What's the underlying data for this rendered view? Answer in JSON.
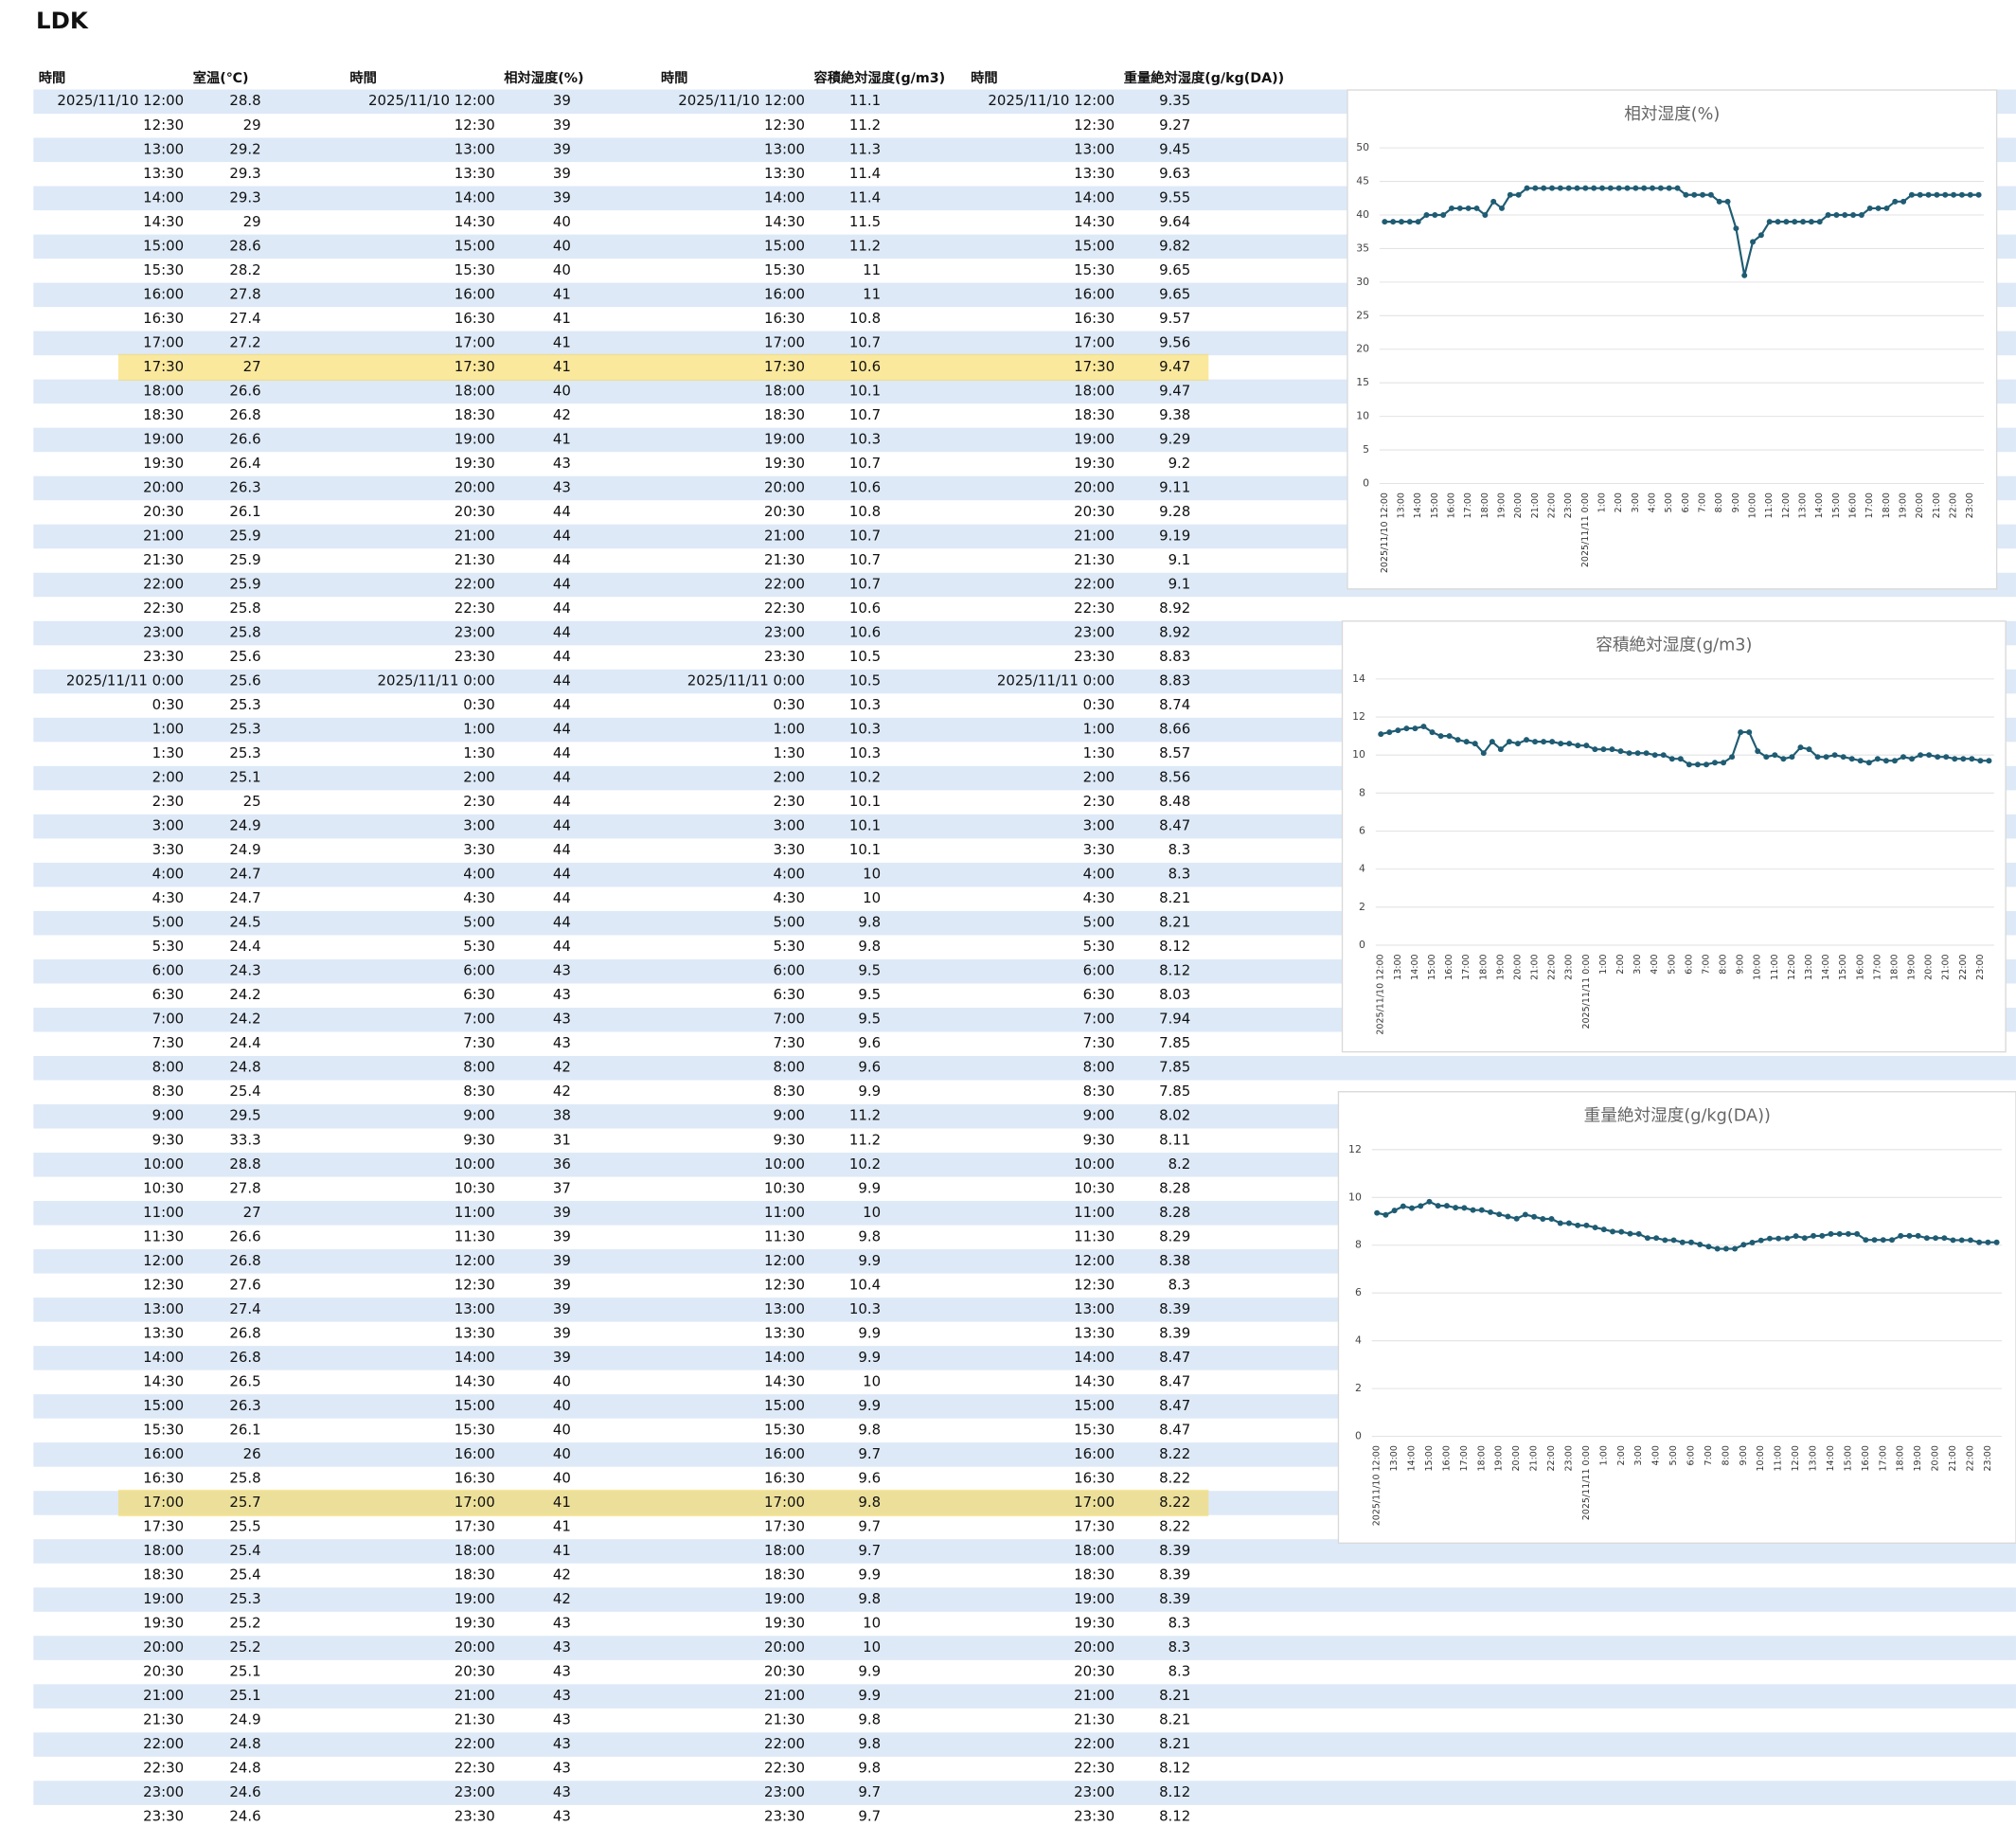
{
  "title": "LDK",
  "table": {
    "headers": [
      "時間",
      "室温(℃)",
      "時間",
      "相対湿度(%)",
      "時間",
      "容積絶対湿度(g/m3)",
      "時間",
      "重量絶対湿度(g/kg(DA))"
    ],
    "rows": [
      [
        "2025/11/10 12:00",
        28.8,
        39,
        11.1,
        9.35
      ],
      [
        "12:30",
        29,
        39,
        11.2,
        9.27
      ],
      [
        "13:00",
        29.2,
        39,
        11.3,
        9.45
      ],
      [
        "13:30",
        29.3,
        39,
        11.4,
        9.63
      ],
      [
        "14:00",
        29.3,
        39,
        11.4,
        9.55
      ],
      [
        "14:30",
        29,
        40,
        11.5,
        9.64
      ],
      [
        "15:00",
        28.6,
        40,
        11.2,
        9.82
      ],
      [
        "15:30",
        28.2,
        40,
        11,
        9.65
      ],
      [
        "16:00",
        27.8,
        41,
        11,
        9.65
      ],
      [
        "16:30",
        27.4,
        41,
        10.8,
        9.57
      ],
      [
        "17:00",
        27.2,
        41,
        10.7,
        9.56
      ],
      [
        "17:30",
        27,
        41,
        10.6,
        9.47
      ],
      [
        "18:00",
        26.6,
        40,
        10.1,
        9.47
      ],
      [
        "18:30",
        26.8,
        42,
        10.7,
        9.38
      ],
      [
        "19:00",
        26.6,
        41,
        10.3,
        9.29
      ],
      [
        "19:30",
        26.4,
        43,
        10.7,
        9.2
      ],
      [
        "20:00",
        26.3,
        43,
        10.6,
        9.11
      ],
      [
        "20:30",
        26.1,
        44,
        10.8,
        9.28
      ],
      [
        "21:00",
        25.9,
        44,
        10.7,
        9.19
      ],
      [
        "21:30",
        25.9,
        44,
        10.7,
        9.1
      ],
      [
        "22:00",
        25.9,
        44,
        10.7,
        9.1
      ],
      [
        "22:30",
        25.8,
        44,
        10.6,
        8.92
      ],
      [
        "23:00",
        25.8,
        44,
        10.6,
        8.92
      ],
      [
        "23:30",
        25.6,
        44,
        10.5,
        8.83
      ],
      [
        "2025/11/11 0:00",
        25.6,
        44,
        10.5,
        8.83
      ],
      [
        "0:30",
        25.3,
        44,
        10.3,
        8.74
      ],
      [
        "1:00",
        25.3,
        44,
        10.3,
        8.66
      ],
      [
        "1:30",
        25.3,
        44,
        10.3,
        8.57
      ],
      [
        "2:00",
        25.1,
        44,
        10.2,
        8.56
      ],
      [
        "2:30",
        25,
        44,
        10.1,
        8.48
      ],
      [
        "3:00",
        24.9,
        44,
        10.1,
        8.47
      ],
      [
        "3:30",
        24.9,
        44,
        10.1,
        8.3
      ],
      [
        "4:00",
        24.7,
        44,
        10,
        8.3
      ],
      [
        "4:30",
        24.7,
        44,
        10,
        8.21
      ],
      [
        "5:00",
        24.5,
        44,
        9.8,
        8.21
      ],
      [
        "5:30",
        24.4,
        44,
        9.8,
        8.12
      ],
      [
        "6:00",
        24.3,
        43,
        9.5,
        8.12
      ],
      [
        "6:30",
        24.2,
        43,
        9.5,
        8.03
      ],
      [
        "7:00",
        24.2,
        43,
        9.5,
        7.94
      ],
      [
        "7:30",
        24.4,
        43,
        9.6,
        7.85
      ],
      [
        "8:00",
        24.8,
        42,
        9.6,
        7.85
      ],
      [
        "8:30",
        25.4,
        42,
        9.9,
        7.85
      ],
      [
        "9:00",
        29.5,
        38,
        11.2,
        8.02
      ],
      [
        "9:30",
        33.3,
        31,
        11.2,
        8.11
      ],
      [
        "10:00",
        28.8,
        36,
        10.2,
        8.2
      ],
      [
        "10:30",
        27.8,
        37,
        9.9,
        8.28
      ],
      [
        "11:00",
        27,
        39,
        10,
        8.28
      ],
      [
        "11:30",
        26.6,
        39,
        9.8,
        8.29
      ],
      [
        "12:00",
        26.8,
        39,
        9.9,
        8.38
      ],
      [
        "12:30",
        27.6,
        39,
        10.4,
        8.3
      ],
      [
        "13:00",
        27.4,
        39,
        10.3,
        8.39
      ],
      [
        "13:30",
        26.8,
        39,
        9.9,
        8.39
      ],
      [
        "14:00",
        26.8,
        39,
        9.9,
        8.47
      ],
      [
        "14:30",
        26.5,
        40,
        10,
        8.47
      ],
      [
        "15:00",
        26.3,
        40,
        9.9,
        8.47
      ],
      [
        "15:30",
        26.1,
        40,
        9.8,
        8.47
      ],
      [
        "16:00",
        26,
        40,
        9.7,
        8.22
      ],
      [
        "16:30",
        25.8,
        40,
        9.6,
        8.22
      ],
      [
        "17:00",
        25.7,
        41,
        9.8,
        8.22
      ],
      [
        "17:30",
        25.5,
        41,
        9.7,
        8.22
      ],
      [
        "18:00",
        25.4,
        41,
        9.7,
        8.39
      ],
      [
        "18:30",
        25.4,
        42,
        9.9,
        8.39
      ],
      [
        "19:00",
        25.3,
        42,
        9.8,
        8.39
      ],
      [
        "19:30",
        25.2,
        43,
        10,
        8.3
      ],
      [
        "20:00",
        25.2,
        43,
        10,
        8.3
      ],
      [
        "20:30",
        25.1,
        43,
        9.9,
        8.3
      ],
      [
        "21:00",
        25.1,
        43,
        9.9,
        8.21
      ],
      [
        "21:30",
        24.9,
        43,
        9.8,
        8.21
      ],
      [
        "22:00",
        24.8,
        43,
        9.8,
        8.21
      ],
      [
        "22:30",
        24.8,
        43,
        9.8,
        8.12
      ],
      [
        "23:00",
        24.6,
        43,
        9.7,
        8.12
      ],
      [
        "23:30",
        24.6,
        43,
        9.7,
        8.12
      ]
    ]
  },
  "highlight_rows": [
    11,
    58
  ],
  "charts": [
    {
      "type": "line",
      "title": "相対湿度(%)",
      "ylim": [
        0,
        50
      ],
      "yticks": [
        0,
        5,
        10,
        15,
        20,
        25,
        30,
        35,
        40,
        45,
        50
      ],
      "color": "#1f5c73",
      "grid": true
    },
    {
      "type": "line",
      "title": "容積絶対湿度(g/m3)",
      "ylim": [
        0,
        14
      ],
      "yticks": [
        0,
        2,
        4,
        6,
        8,
        10,
        12,
        14
      ],
      "color": "#1f5c73",
      "grid": true
    },
    {
      "type": "line",
      "title": "重量絶対湿度(g/kg(DA))",
      "ylim": [
        0,
        12
      ],
      "yticks": [
        0,
        2,
        4,
        6,
        8,
        10,
        12
      ],
      "color": "#1f5c73",
      "grid": true
    }
  ]
}
